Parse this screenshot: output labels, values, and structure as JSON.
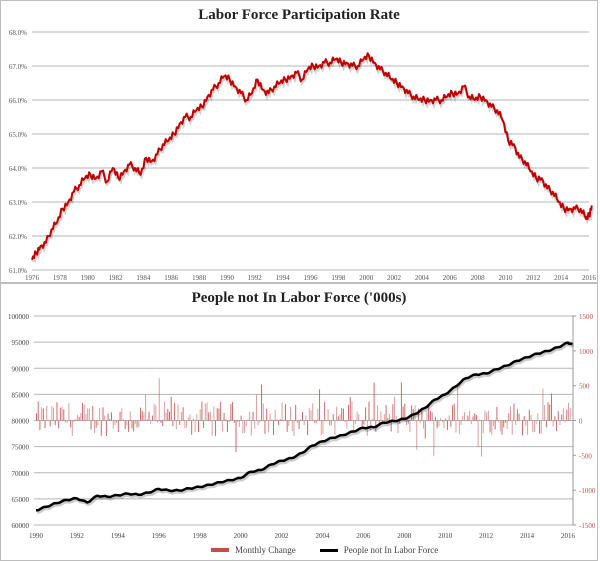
{
  "chart_data": [
    {
      "type": "line",
      "title": "Labor Force Participation Rate",
      "xlabel": "",
      "ylabel": "",
      "ylim": [
        61.0,
        68.0
      ],
      "yticks": [
        "61.0%",
        "62.0%",
        "63.0%",
        "64.0%",
        "65.0%",
        "66.0%",
        "67.0%",
        "68.0%"
      ],
      "xticks": [
        "1976",
        "1978",
        "1980",
        "1982",
        "1984",
        "1986",
        "1988",
        "1990",
        "1992",
        "1994",
        "1996",
        "1998",
        "2000",
        "2002",
        "2004",
        "2006",
        "2008",
        "2010",
        "2012",
        "2014",
        "2016"
      ],
      "grid": true,
      "series": [
        {
          "name": "Labor Force Participation Rate",
          "color": "#c00000",
          "x": [
            1976.0,
            1976.3,
            1976.6,
            1977.0,
            1977.4,
            1977.8,
            1978.2,
            1978.6,
            1979.0,
            1979.4,
            1979.8,
            1980.2,
            1980.6,
            1981.0,
            1981.4,
            1981.8,
            1982.2,
            1982.6,
            1983.0,
            1983.4,
            1983.8,
            1984.2,
            1984.6,
            1985.0,
            1985.4,
            1985.8,
            1986.2,
            1986.6,
            1987.0,
            1987.4,
            1987.8,
            1988.2,
            1988.6,
            1989.0,
            1989.4,
            1989.8,
            1990.2,
            1990.6,
            1991.0,
            1991.4,
            1991.8,
            1992.2,
            1992.6,
            1993.0,
            1993.4,
            1993.8,
            1994.2,
            1994.6,
            1995.0,
            1995.4,
            1995.8,
            1996.2,
            1996.6,
            1997.0,
            1997.4,
            1997.8,
            1998.2,
            1998.6,
            1999.0,
            1999.4,
            1999.8,
            2000.2,
            2000.6,
            2001.0,
            2001.4,
            2001.8,
            2002.2,
            2002.6,
            2003.0,
            2003.4,
            2003.8,
            2004.2,
            2004.6,
            2005.0,
            2005.4,
            2005.8,
            2006.2,
            2006.6,
            2007.0,
            2007.4,
            2007.8,
            2008.2,
            2008.6,
            2009.0,
            2009.4,
            2009.8,
            2010.2,
            2010.6,
            2011.0,
            2011.4,
            2011.8,
            2012.2,
            2012.6,
            2013.0,
            2013.4,
            2013.8,
            2014.2,
            2014.6,
            2015.0,
            2015.4,
            2015.8,
            2016.0,
            2016.2
          ],
          "values": [
            61.3,
            61.5,
            61.7,
            61.8,
            62.2,
            62.4,
            62.8,
            63.0,
            63.3,
            63.5,
            63.7,
            63.8,
            63.7,
            63.9,
            63.6,
            64.0,
            63.7,
            63.9,
            64.1,
            64.0,
            63.8,
            64.3,
            64.2,
            64.4,
            64.7,
            64.8,
            65.0,
            65.3,
            65.5,
            65.5,
            65.7,
            65.8,
            66.1,
            66.3,
            66.5,
            66.7,
            66.6,
            66.4,
            66.2,
            66.0,
            66.2,
            66.6,
            66.3,
            66.2,
            66.4,
            66.5,
            66.6,
            66.7,
            66.8,
            66.6,
            66.9,
            67.0,
            67.0,
            67.1,
            67.1,
            67.2,
            67.1,
            67.1,
            67.0,
            67.0,
            67.2,
            67.3,
            67.1,
            66.9,
            66.8,
            66.6,
            66.5,
            66.4,
            66.2,
            66.1,
            66.0,
            66.0,
            66.0,
            66.0,
            66.0,
            66.1,
            66.2,
            66.2,
            66.4,
            66.1,
            66.0,
            66.1,
            66.0,
            65.8,
            65.7,
            65.4,
            64.8,
            64.7,
            64.3,
            64.2,
            63.9,
            63.7,
            63.7,
            63.4,
            63.3,
            63.0,
            62.8,
            62.8,
            62.8,
            62.8,
            62.5,
            62.6,
            62.9
          ]
        }
      ]
    },
    {
      "type": "bar+line",
      "title": "People not In Labor Force ('000s)",
      "xlabel": "",
      "ylabel_left": "",
      "ylabel_right": "",
      "ylim_left": [
        60000,
        100000
      ],
      "ylim_right": [
        -1500,
        1500
      ],
      "yticks_left": [
        "60000",
        "65000",
        "70000",
        "75000",
        "80000",
        "85000",
        "90000",
        "95000",
        "100000"
      ],
      "yticks_right": [
        "-1500",
        "-1000",
        "-500",
        "0",
        "500",
        "1000",
        "1500"
      ],
      "xticks": [
        "1990",
        "1992",
        "1994",
        "1996",
        "1998",
        "2000",
        "2002",
        "2004",
        "2006",
        "2008",
        "2010",
        "2012",
        "2014",
        "2016"
      ],
      "grid": true,
      "legend": {
        "position": "bottom",
        "entries": [
          {
            "label": "Monthly Change",
            "color": "#c0504d",
            "kind": "bar"
          },
          {
            "label": "People not In Labor Force",
            "color": "#000000",
            "kind": "line"
          }
        ]
      },
      "series": [
        {
          "name": "People not In Labor Force",
          "axis": "left",
          "color": "#000000",
          "x": [
            1990.0,
            1990.5,
            1991.0,
            1991.5,
            1992.0,
            1992.5,
            1993.0,
            1993.5,
            1994.0,
            1994.5,
            1995.0,
            1995.5,
            1996.0,
            1996.5,
            1997.0,
            1997.5,
            1998.0,
            1998.5,
            1999.0,
            1999.5,
            2000.0,
            2000.5,
            2001.0,
            2001.5,
            2002.0,
            2002.5,
            2003.0,
            2003.5,
            2004.0,
            2004.5,
            2005.0,
            2005.5,
            2006.0,
            2006.5,
            2007.0,
            2007.5,
            2008.0,
            2008.5,
            2009.0,
            2009.5,
            2010.0,
            2010.5,
            2011.0,
            2011.5,
            2012.0,
            2012.5,
            2013.0,
            2013.5,
            2014.0,
            2014.5,
            2015.0,
            2015.5,
            2016.0,
            2016.2
          ],
          "values": [
            62800,
            63500,
            64200,
            64800,
            65100,
            64300,
            65600,
            65400,
            65700,
            66000,
            65800,
            66200,
            66900,
            66600,
            66600,
            67000,
            67300,
            67700,
            68200,
            68600,
            69000,
            70200,
            70500,
            71600,
            72300,
            72800,
            73800,
            75200,
            76000,
            76700,
            77200,
            77900,
            78600,
            78700,
            79600,
            79900,
            80300,
            81200,
            82400,
            84000,
            85000,
            86500,
            88100,
            88800,
            89000,
            89800,
            90500,
            91400,
            92100,
            92800,
            93300,
            94000,
            94900,
            94500
          ]
        },
        {
          "name": "Monthly Change",
          "axis": "right",
          "color": "#c0504d",
          "description": "Monthly bar series oscillating roughly between -700 and +1150 around zero",
          "approx_extremes": {
            "max": 1150,
            "min": -700
          }
        }
      ]
    }
  ]
}
